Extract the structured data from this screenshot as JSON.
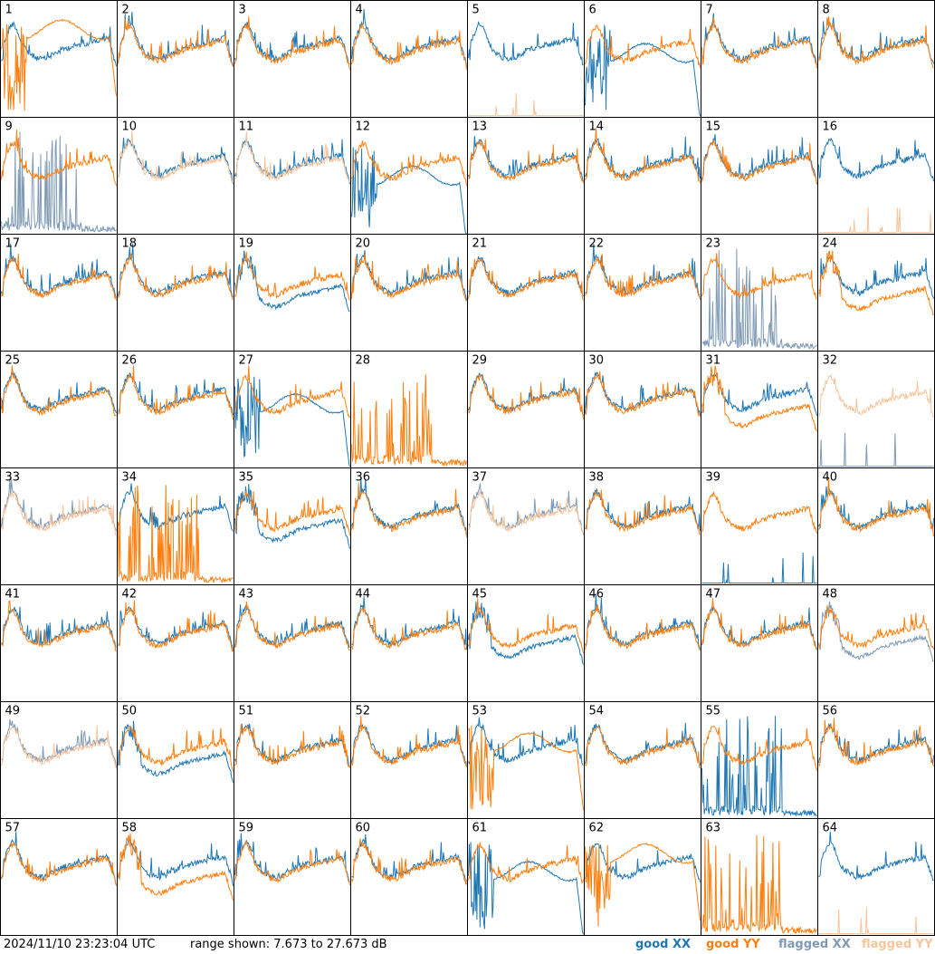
{
  "footer": {
    "timestamp": "2024/11/10 23:23:04 UTC",
    "range": "range shown: 7.673 to 27.673 dB"
  },
  "legend": {
    "good_xx": "good XX",
    "good_yy": "good YY",
    "flagged_xx": "flagged XX",
    "flagged_yy": "flagged YY"
  },
  "colors": {
    "good_xx": "#1f77b4",
    "good_yy": "#ff7f0e",
    "flagged_xx": "#7f9ab5",
    "flagged_yy": "#f8c49a"
  },
  "chart_data": {
    "type": "line",
    "layout": "8x8 small multiples",
    "ylim": [
      7.673,
      27.673
    ],
    "yunit": "dB",
    "series_types": [
      "good XX",
      "good YY",
      "flagged XX",
      "flagged YY"
    ],
    "panels": [
      {
        "label": "1",
        "xx": "normal",
        "yy": "dip",
        "yy_level": 0.25
      },
      {
        "label": "2",
        "xx": "normal",
        "yy": "normal"
      },
      {
        "label": "3",
        "xx": "normal",
        "yy": "normal"
      },
      {
        "label": "4",
        "xx": "normal",
        "yy": "normal"
      },
      {
        "label": "5",
        "xx": "normal",
        "yy": "dead",
        "yy_flagged": true
      },
      {
        "label": "6",
        "xx": "dip",
        "yy": "normal",
        "xx_level": 0.45
      },
      {
        "label": "7",
        "xx": "normal",
        "yy": "normal"
      },
      {
        "label": "8",
        "xx": "normal",
        "yy": "normal"
      },
      {
        "label": "9",
        "xx": "spiky",
        "yy": "normal",
        "xx_flagged": true
      },
      {
        "label": "10",
        "xx": "normal",
        "yy": "normal",
        "yy_flagged": true
      },
      {
        "label": "11",
        "xx": "normal",
        "yy": "normal",
        "yy_flagged": true
      },
      {
        "label": "12",
        "xx": "dip",
        "yy": "normal",
        "xx_level": 0.5
      },
      {
        "label": "13",
        "xx": "normal",
        "yy": "normal"
      },
      {
        "label": "14",
        "xx": "normal",
        "yy": "normal"
      },
      {
        "label": "15",
        "xx": "normal",
        "yy": "normal"
      },
      {
        "label": "16",
        "xx": "normal",
        "yy": "dead",
        "yy_flagged": true
      },
      {
        "label": "17",
        "xx": "normal",
        "yy": "normal"
      },
      {
        "label": "18",
        "xx": "normal",
        "yy": "normal"
      },
      {
        "label": "19",
        "xx": "low",
        "yy": "normal"
      },
      {
        "label": "20",
        "xx": "normal",
        "yy": "normal"
      },
      {
        "label": "21",
        "xx": "normal",
        "yy": "normal"
      },
      {
        "label": "22",
        "xx": "normal",
        "yy": "normal"
      },
      {
        "label": "23",
        "xx": "spiky",
        "yy": "normal",
        "xx_flagged": true
      },
      {
        "label": "24",
        "xx": "normal",
        "yy": "low"
      },
      {
        "label": "25",
        "xx": "normal",
        "yy": "normal"
      },
      {
        "label": "26",
        "xx": "normal",
        "yy": "normal"
      },
      {
        "label": "27",
        "xx": "dip",
        "yy": "normal",
        "xx_level": 0.45
      },
      {
        "label": "28",
        "xx": "none",
        "yy": "spiky"
      },
      {
        "label": "29",
        "xx": "normal",
        "yy": "normal"
      },
      {
        "label": "30",
        "xx": "normal",
        "yy": "normal"
      },
      {
        "label": "31",
        "xx": "normal",
        "yy": "low"
      },
      {
        "label": "32",
        "xx": "dead",
        "yy": "normal",
        "yy_flagged": true,
        "xx_flagged": true
      },
      {
        "label": "33",
        "xx": "normal",
        "yy": "normal",
        "xx_flagged": true,
        "yy_flagged": true
      },
      {
        "label": "34",
        "xx": "normal",
        "yy": "spiky"
      },
      {
        "label": "35",
        "xx": "low",
        "yy": "normal"
      },
      {
        "label": "36",
        "xx": "normal",
        "yy": "normal"
      },
      {
        "label": "37",
        "xx": "normal",
        "yy": "normal",
        "xx_flagged": true,
        "yy_flagged": true
      },
      {
        "label": "38",
        "xx": "normal",
        "yy": "normal"
      },
      {
        "label": "39",
        "xx": "dead",
        "yy": "normal"
      },
      {
        "label": "40",
        "xx": "normal",
        "yy": "normal"
      },
      {
        "label": "41",
        "xx": "normal",
        "yy": "normal"
      },
      {
        "label": "42",
        "xx": "normal",
        "yy": "normal"
      },
      {
        "label": "43",
        "xx": "normal",
        "yy": "normal"
      },
      {
        "label": "44",
        "xx": "normal",
        "yy": "normal"
      },
      {
        "label": "45",
        "xx": "low",
        "yy": "normal"
      },
      {
        "label": "46",
        "xx": "normal",
        "yy": "normal"
      },
      {
        "label": "47",
        "xx": "normal",
        "yy": "normal"
      },
      {
        "label": "48",
        "xx": "low",
        "yy": "normal",
        "xx_flagged": true
      },
      {
        "label": "49",
        "xx": "normal",
        "yy": "normal",
        "xx_flagged": true,
        "yy_flagged": true
      },
      {
        "label": "50",
        "xx": "low",
        "yy": "normal"
      },
      {
        "label": "51",
        "xx": "normal",
        "yy": "normal"
      },
      {
        "label": "52",
        "xx": "normal",
        "yy": "normal"
      },
      {
        "label": "53",
        "xx": "normal",
        "yy": "dip",
        "yy_level": 0.35
      },
      {
        "label": "54",
        "xx": "normal",
        "yy": "normal"
      },
      {
        "label": "55",
        "xx": "spiky",
        "yy": "normal"
      },
      {
        "label": "56",
        "xx": "normal",
        "yy": "normal"
      },
      {
        "label": "57",
        "xx": "normal",
        "yy": "normal"
      },
      {
        "label": "58",
        "xx": "normal",
        "yy": "low"
      },
      {
        "label": "59",
        "xx": "normal",
        "yy": "normal"
      },
      {
        "label": "60",
        "xx": "normal",
        "yy": "normal"
      },
      {
        "label": "61",
        "xx": "dip",
        "yy": "normal",
        "xx_level": 0.45
      },
      {
        "label": "62",
        "xx": "normal",
        "yy": "dip",
        "yy_level": 0.3
      },
      {
        "label": "63",
        "xx": "none",
        "yy": "spiky"
      },
      {
        "label": "64",
        "xx": "normal",
        "yy": "dead",
        "yy_flagged": true
      }
    ]
  }
}
